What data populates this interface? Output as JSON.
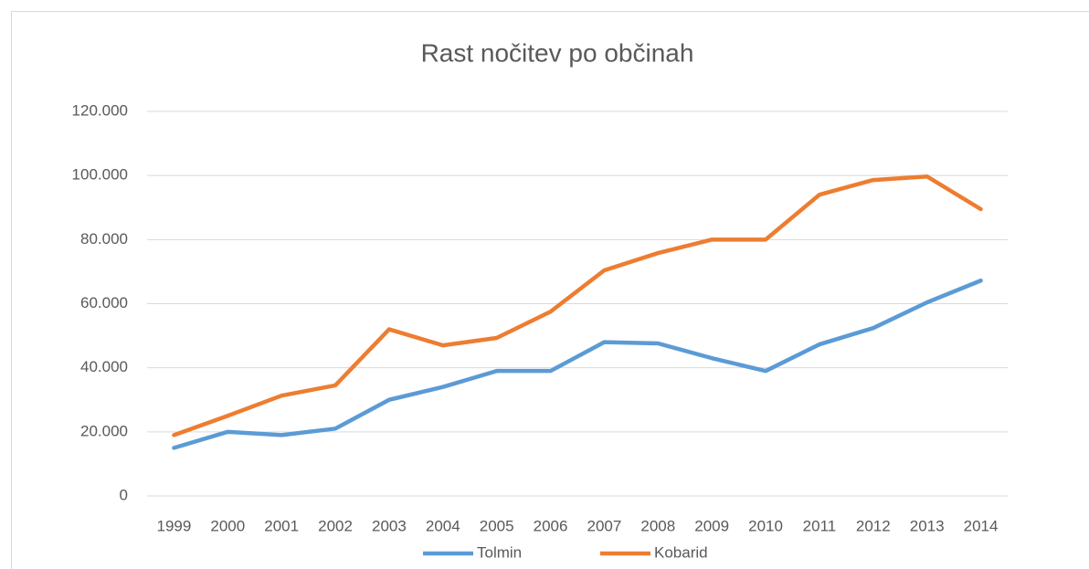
{
  "chart_data": {
    "type": "line",
    "title": "Rast nočitev po občinah",
    "categories": [
      "1999",
      "2000",
      "2001",
      "2002",
      "2003",
      "2004",
      "2005",
      "2006",
      "2007",
      "2008",
      "2009",
      "2010",
      "2011",
      "2012",
      "2013",
      "2014"
    ],
    "series": [
      {
        "name": "Tolmin",
        "color": "#5b9bd5",
        "values": [
          15000,
          20000,
          19000,
          21000,
          30000,
          34000,
          39000,
          39000,
          48000,
          47600,
          43000,
          39000,
          47300,
          52400,
          60400,
          67200
        ]
      },
      {
        "name": "Kobarid",
        "color": "#ed7d31",
        "values": [
          19000,
          25000,
          31300,
          34500,
          52000,
          47000,
          49300,
          57500,
          70400,
          75800,
          80000,
          80000,
          94000,
          98600,
          99700,
          89500
        ]
      }
    ],
    "ylim": [
      0,
      120000
    ],
    "yticks": [
      0,
      {
        "value": 20000,
        "label": "20.000"
      },
      {
        "value": 40000,
        "label": "40.000"
      },
      {
        "value": 60000,
        "label": "60.000"
      },
      {
        "value": 80000,
        "label": "80.000"
      },
      {
        "value": 100000,
        "label": "100.000"
      },
      {
        "value": 120000,
        "label": "120.000"
      }
    ],
    "grid": true,
    "legend": "bottom"
  }
}
